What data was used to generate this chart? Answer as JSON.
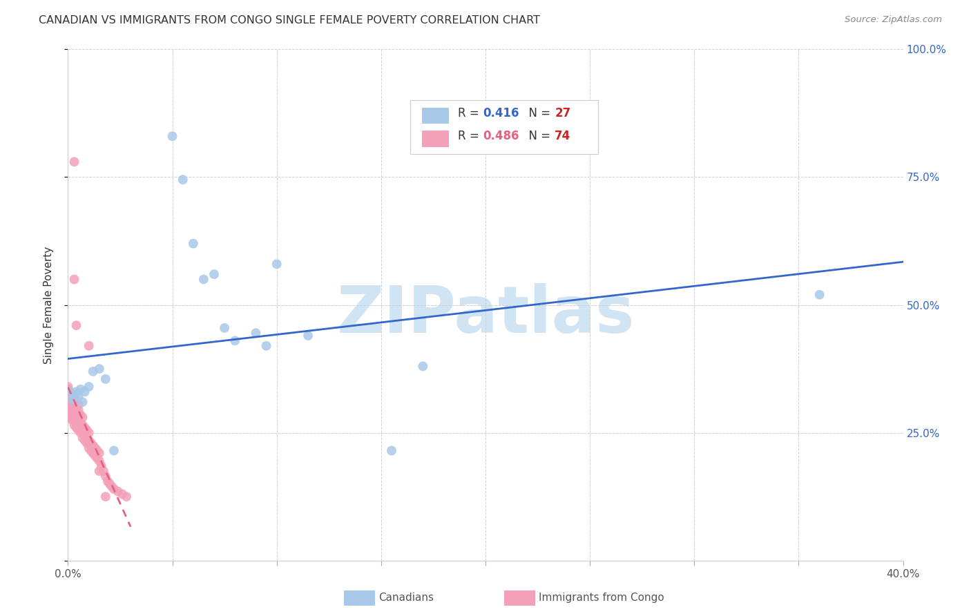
{
  "title": "CANADIAN VS IMMIGRANTS FROM CONGO SINGLE FEMALE POVERTY CORRELATION CHART",
  "source": "Source: ZipAtlas.com",
  "ylabel": "Single Female Poverty",
  "xlim": [
    0.0,
    0.4
  ],
  "ylim": [
    0.0,
    1.0
  ],
  "xtick_positions": [
    0.0,
    0.05,
    0.1,
    0.15,
    0.2,
    0.25,
    0.3,
    0.35,
    0.4
  ],
  "xticklabels": [
    "0.0%",
    "",
    "",
    "",
    "",
    "",
    "",
    "",
    "40.0%"
  ],
  "ytick_positions": [
    0.0,
    0.25,
    0.5,
    0.75,
    1.0
  ],
  "yticklabels_right": [
    "",
    "25.0%",
    "50.0%",
    "75.0%",
    "100.0%"
  ],
  "canadian_R": 0.416,
  "canadian_N": 27,
  "congo_R": 0.486,
  "congo_N": 74,
  "canadian_color": "#a8c8e8",
  "congo_color": "#f4a0b8",
  "canadian_line_color": "#3366cc",
  "congo_line_color": "#e86080",
  "watermark": "ZIPatlas",
  "watermark_color": "#d0e4f4",
  "canadians_x": [
    0.001,
    0.002,
    0.003,
    0.004,
    0.005,
    0.006,
    0.007,
    0.008,
    0.01,
    0.012,
    0.015,
    0.018,
    0.022,
    0.05,
    0.055,
    0.06,
    0.065,
    0.07,
    0.075,
    0.08,
    0.09,
    0.095,
    0.1,
    0.115,
    0.17,
    0.36,
    0.155
  ],
  "canadians_y": [
    0.33,
    0.315,
    0.325,
    0.33,
    0.32,
    0.335,
    0.31,
    0.33,
    0.34,
    0.37,
    0.375,
    0.355,
    0.215,
    0.83,
    0.745,
    0.62,
    0.55,
    0.56,
    0.455,
    0.43,
    0.445,
    0.42,
    0.58,
    0.44,
    0.38,
    0.52,
    0.215
  ],
  "congo_x": [
    0.0,
    0.0,
    0.0,
    0.0,
    0.0,
    0.0,
    0.0,
    0.0,
    0.001,
    0.001,
    0.001,
    0.001,
    0.001,
    0.001,
    0.002,
    0.002,
    0.002,
    0.002,
    0.002,
    0.002,
    0.003,
    0.003,
    0.003,
    0.003,
    0.003,
    0.003,
    0.004,
    0.004,
    0.004,
    0.004,
    0.004,
    0.005,
    0.005,
    0.005,
    0.005,
    0.005,
    0.006,
    0.006,
    0.006,
    0.006,
    0.007,
    0.007,
    0.007,
    0.007,
    0.008,
    0.008,
    0.008,
    0.009,
    0.009,
    0.009,
    0.01,
    0.01,
    0.01,
    0.011,
    0.011,
    0.012,
    0.012,
    0.013,
    0.013,
    0.014,
    0.014,
    0.015,
    0.015,
    0.016,
    0.017,
    0.018,
    0.019,
    0.02,
    0.021,
    0.022,
    0.024,
    0.026,
    0.028
  ],
  "congo_y": [
    0.3,
    0.31,
    0.315,
    0.32,
    0.325,
    0.33,
    0.335,
    0.34,
    0.28,
    0.295,
    0.305,
    0.315,
    0.325,
    0.33,
    0.275,
    0.29,
    0.3,
    0.31,
    0.315,
    0.32,
    0.265,
    0.28,
    0.295,
    0.305,
    0.315,
    0.32,
    0.26,
    0.275,
    0.29,
    0.3,
    0.31,
    0.255,
    0.265,
    0.28,
    0.295,
    0.305,
    0.25,
    0.26,
    0.27,
    0.285,
    0.24,
    0.255,
    0.265,
    0.28,
    0.235,
    0.25,
    0.26,
    0.23,
    0.24,
    0.255,
    0.22,
    0.235,
    0.25,
    0.215,
    0.23,
    0.21,
    0.225,
    0.205,
    0.22,
    0.2,
    0.215,
    0.195,
    0.21,
    0.185,
    0.175,
    0.165,
    0.155,
    0.15,
    0.145,
    0.14,
    0.135,
    0.13,
    0.125
  ],
  "congo_extra_x": [
    0.003,
    0.003,
    0.004,
    0.01,
    0.015,
    0.018
  ],
  "congo_extra_y": [
    0.78,
    0.55,
    0.46,
    0.42,
    0.175,
    0.125
  ]
}
